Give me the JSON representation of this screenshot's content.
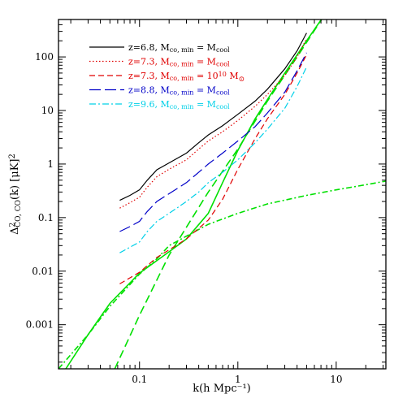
{
  "chart_data": {
    "type": "line",
    "xlabel": "k(h Mpc⁻¹)",
    "ylabel": "Δ²CO, CO(k) [μK]²",
    "xscale": "log",
    "yscale": "log",
    "xlim": [
      0.015,
      32
    ],
    "ylim": [
      0.00015,
      500
    ],
    "x_ticks": [
      0.1,
      1,
      10
    ],
    "x_tick_labels": [
      "0.1",
      "1",
      "10"
    ],
    "y_ticks": [
      0.001,
      0.01,
      0.1,
      1,
      10,
      100
    ],
    "y_tick_labels": [
      "0.001",
      "0.01",
      "0.1",
      "1",
      "10",
      "100"
    ],
    "grid": false,
    "legend_position": "top-left",
    "series": [
      {
        "name": "z=6.8, Mco, min = Mcool",
        "legend_main": "z=6.8, M",
        "legend_sub1": "co, min",
        "legend_mid": " = M",
        "legend_sub2": "cool",
        "legend_sup": "",
        "color": "#000000",
        "dash": "",
        "points": [
          [
            0.063,
            0.21
          ],
          [
            0.08,
            0.26
          ],
          [
            0.1,
            0.33
          ],
          [
            0.12,
            0.5
          ],
          [
            0.15,
            0.78
          ],
          [
            0.2,
            1.05
          ],
          [
            0.3,
            1.6
          ],
          [
            0.4,
            2.5
          ],
          [
            0.5,
            3.5
          ],
          [
            0.7,
            5.2
          ],
          [
            1.0,
            8.5
          ],
          [
            1.5,
            15
          ],
          [
            2.0,
            25
          ],
          [
            3.0,
            60
          ],
          [
            4.0,
            130
          ],
          [
            5.0,
            280
          ]
        ]
      },
      {
        "name": "z=7.3, Mco, min = Mcool",
        "legend_main": "z=7.3, M",
        "legend_sub1": "co, min",
        "legend_mid": " = M",
        "legend_sub2": "cool",
        "legend_sup": "",
        "color": "#e00000",
        "dash": "1.5 2.5",
        "points": [
          [
            0.063,
            0.15
          ],
          [
            0.08,
            0.19
          ],
          [
            0.1,
            0.24
          ],
          [
            0.12,
            0.37
          ],
          [
            0.15,
            0.58
          ],
          [
            0.2,
            0.8
          ],
          [
            0.3,
            1.2
          ],
          [
            0.4,
            1.9
          ],
          [
            0.5,
            2.7
          ],
          [
            0.7,
            4
          ],
          [
            1.0,
            6.5
          ],
          [
            1.5,
            12
          ],
          [
            2.0,
            20
          ],
          [
            3.0,
            45
          ],
          [
            4.0,
            100
          ],
          [
            5.0,
            220
          ]
        ]
      },
      {
        "name": "z=7.3, Mco, min = 10^10 M⊙",
        "legend_main": "z=7.3, M",
        "legend_sub1": "co, min",
        "legend_mid": " = 10",
        "legend_sub2": "",
        "legend_sup": "10",
        "legend_tail": " M⊙",
        "color": "#e00000",
        "dash": "7 4",
        "points": [
          [
            0.063,
            0.0058
          ],
          [
            0.08,
            0.0075
          ],
          [
            0.1,
            0.0095
          ],
          [
            0.15,
            0.018
          ],
          [
            0.2,
            0.025
          ],
          [
            0.3,
            0.04
          ],
          [
            0.5,
            0.09
          ],
          [
            0.7,
            0.22
          ],
          [
            1.0,
            0.8
          ],
          [
            1.5,
            3
          ],
          [
            2.0,
            7
          ],
          [
            3.0,
            20
          ],
          [
            4.0,
            50
          ],
          [
            5.0,
            110
          ]
        ]
      },
      {
        "name": "z=8.8, Mco, min = Mcool",
        "legend_main": "z=8.8, M",
        "legend_sub1": "co, min",
        "legend_mid": " = M",
        "legend_sub2": "cool",
        "legend_sup": "",
        "color": "#0000c8",
        "dash": "14 5",
        "points": [
          [
            0.063,
            0.055
          ],
          [
            0.08,
            0.068
          ],
          [
            0.1,
            0.085
          ],
          [
            0.12,
            0.13
          ],
          [
            0.15,
            0.2
          ],
          [
            0.2,
            0.28
          ],
          [
            0.3,
            0.45
          ],
          [
            0.4,
            0.7
          ],
          [
            0.5,
            1.0
          ],
          [
            0.7,
            1.6
          ],
          [
            1.0,
            2.7
          ],
          [
            1.5,
            5
          ],
          [
            2.0,
            9
          ],
          [
            3.0,
            22
          ],
          [
            4.0,
            55
          ],
          [
            5.0,
            120
          ]
        ]
      },
      {
        "name": "z=9.6, Mco, min = Mcool",
        "legend_main": "z=9.6, M",
        "legend_sub1": "co, min",
        "legend_mid": " = M",
        "legend_sub2": "cool",
        "legend_sup": "",
        "color": "#00d0e8",
        "dash": "8 3 2 3",
        "points": [
          [
            0.063,
            0.022
          ],
          [
            0.08,
            0.028
          ],
          [
            0.1,
            0.035
          ],
          [
            0.12,
            0.055
          ],
          [
            0.15,
            0.085
          ],
          [
            0.2,
            0.12
          ],
          [
            0.3,
            0.2
          ],
          [
            0.4,
            0.3
          ],
          [
            0.5,
            0.45
          ],
          [
            0.7,
            0.7
          ],
          [
            1.0,
            1.2
          ],
          [
            1.5,
            2.5
          ],
          [
            2.0,
            4.5
          ],
          [
            3.0,
            11
          ],
          [
            4.0,
            28
          ],
          [
            5.0,
            65
          ]
        ]
      }
    ],
    "green_curves": [
      {
        "id": "green-solid-steep",
        "color": "#00e000",
        "dash": "",
        "points": [
          [
            0.0178,
            0.00015
          ],
          [
            0.03,
            0.00065
          ],
          [
            0.05,
            0.0025
          ],
          [
            0.1,
            0.0092
          ],
          [
            0.2,
            0.023
          ],
          [
            0.3,
            0.04
          ],
          [
            0.5,
            0.12
          ],
          [
            0.7,
            0.45
          ],
          [
            1.0,
            1.8
          ],
          [
            1.5,
            7
          ],
          [
            2.0,
            16
          ],
          [
            3.0,
            50
          ],
          [
            5.0,
            200
          ],
          [
            8.0,
            700
          ]
        ]
      },
      {
        "id": "green-dashed",
        "color": "#00e000",
        "dash": "10 5",
        "points": [
          [
            0.056,
            0.00015
          ],
          [
            0.1,
            0.0015
          ],
          [
            0.2,
            0.02
          ],
          [
            0.5,
            0.3
          ],
          [
            1.0,
            1.9
          ],
          [
            2.0,
            15
          ],
          [
            4.0,
            100
          ],
          [
            8.0,
            700
          ]
        ]
      },
      {
        "id": "green-dashdot-flat",
        "color": "#00e000",
        "dash": "7 3 2 3",
        "points": [
          [
            0.015,
            0.00015
          ],
          [
            0.03,
            0.00065
          ],
          [
            0.05,
            0.0022
          ],
          [
            0.1,
            0.0088
          ],
          [
            0.15,
            0.017
          ],
          [
            0.2,
            0.03
          ],
          [
            0.3,
            0.045
          ],
          [
            0.5,
            0.075
          ],
          [
            1.0,
            0.12
          ],
          [
            2.0,
            0.18
          ],
          [
            5.0,
            0.26
          ],
          [
            10,
            0.33
          ],
          [
            20,
            0.41
          ],
          [
            32,
            0.48
          ]
        ]
      }
    ]
  }
}
